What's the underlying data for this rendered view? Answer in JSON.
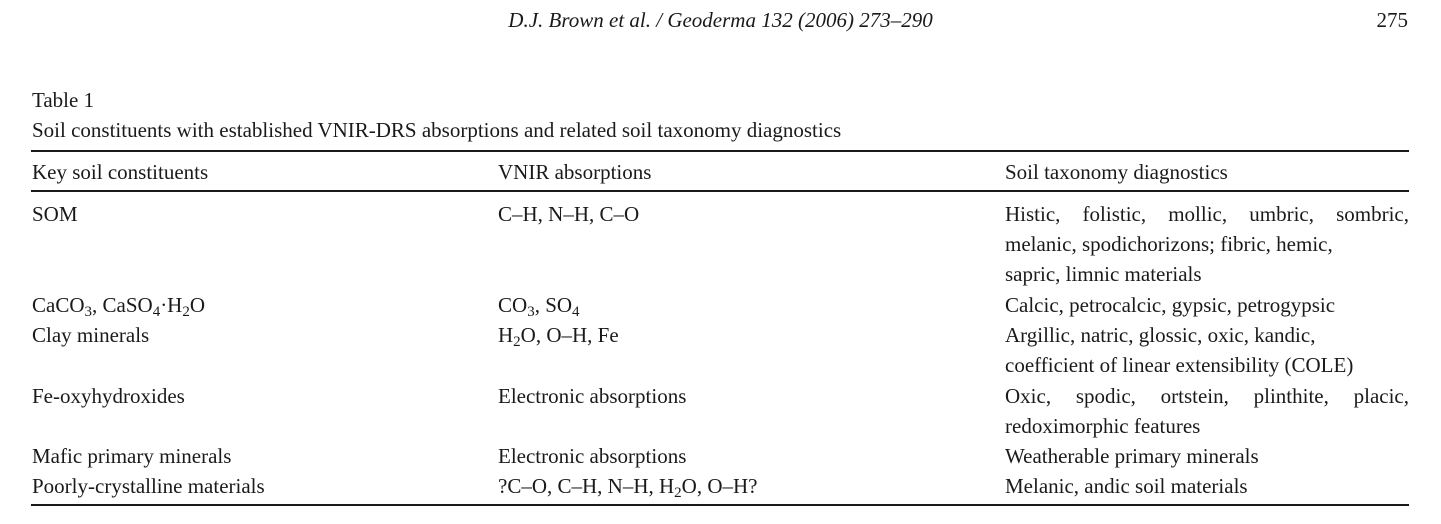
{
  "header": {
    "running_head": "D.J. Brown et al. / Geoderma 132 (2006) 273–290",
    "page_number": "275"
  },
  "table": {
    "label": "Table 1",
    "caption": "Soil constituents with established VNIR-DRS absorptions and related soil taxonomy diagnostics",
    "columns": [
      "Key soil constituents",
      "VNIR absorptions",
      "Soil taxonomy diagnostics"
    ],
    "rows": [
      {
        "constituent": "SOM",
        "absorptions": "C–H, N–H, C–O",
        "diagnostics_lines": [
          "Histic, folistic, mollic, umbric, sombric,",
          "melanic, spodichorizons; fibric, hemic,",
          "sapric, limnic materials"
        ]
      },
      {
        "constituent": "CaCO3, CaSO4·H2O",
        "absorptions": "CO3, SO4",
        "diagnostics_lines": [
          "Calcic, petrocalcic, gypsic, petrogypsic"
        ]
      },
      {
        "constituent": "Clay minerals",
        "absorptions": "H2O, O–H, Fe",
        "diagnostics_lines": [
          "Argillic, natric, glossic, oxic, kandic,",
          "coefficient of linear extensibility (COLE)"
        ]
      },
      {
        "constituent": "Fe-oxyhydroxides",
        "absorptions": "Electronic absorptions",
        "diagnostics_lines": [
          "Oxic, spodic, ortstein, plinthite, placic,",
          "redoximorphic features"
        ]
      },
      {
        "constituent": "Mafic primary minerals",
        "absorptions": "Electronic absorptions",
        "diagnostics_lines": [
          "Weatherable primary minerals"
        ]
      },
      {
        "constituent": "Poorly-crystalline materials",
        "absorptions": "?C–O, C–H, N–H, H2O, O–H?",
        "diagnostics_lines": [
          "Melanic, andic soil materials"
        ]
      }
    ]
  }
}
